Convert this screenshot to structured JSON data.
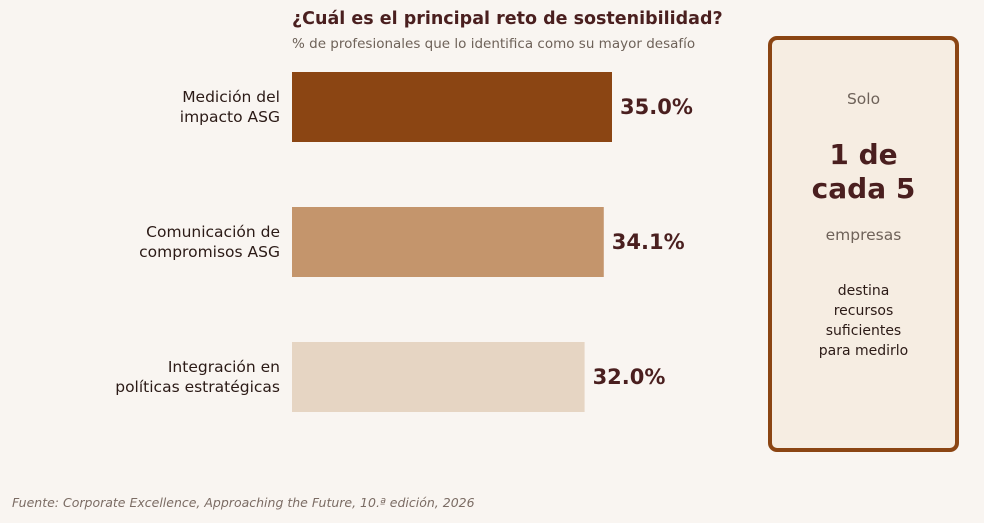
{
  "chart_data": {
    "type": "bar",
    "orientation": "horizontal",
    "title": "¿Cuál es el principal reto de sostenibilidad?",
    "subtitle": "% de profesionales que lo identifica como su mayor desafío",
    "categories": [
      [
        "Medición del",
        "impacto ASG"
      ],
      [
        "Comunicación de",
        "compromisos ASG"
      ],
      [
        "Integración en",
        "políticas estratégicas"
      ]
    ],
    "values": [
      35.0,
      34.1,
      32.0
    ],
    "value_labels": [
      "35.0%",
      "34.1%",
      "32.0%"
    ],
    "bar_colors": [
      "#8B4513",
      "#C4956C",
      "#E6D5C3"
    ],
    "grid": false,
    "axes_visible": false
  },
  "callout": {
    "lead": "Solo",
    "highlight": "1 de\ncada 5",
    "unit": "empresas",
    "text": "destina\nrecursos\nsuficientes\npara medirlo"
  },
  "source": "Fuente: Corporate Excellence, Approaching the Future, 10.ª edición, 2026",
  "colors": {
    "background": "#F9F5F1",
    "title": "#4A1F1F",
    "callout_border": "#8B4513",
    "callout_background": "#F6EDE2"
  }
}
